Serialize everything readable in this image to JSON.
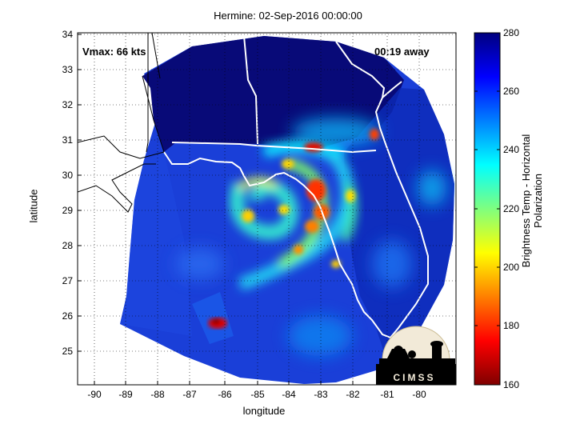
{
  "map": {
    "title": "Hermine: 02-Sep-2016 00:00:00",
    "xlabel": "longitude",
    "ylabel": "latitude",
    "vmax_label": "Vmax: 66 kts",
    "time_away_label": "00:19 away",
    "logo_text": "CIMSS",
    "lon_ticks": [
      "-90",
      "-89",
      "-88",
      "-87",
      "-86",
      "-85",
      "-84",
      "-83",
      "-82",
      "-81",
      "-80"
    ],
    "lat_ticks": [
      "34",
      "33",
      "32",
      "31",
      "30",
      "29",
      "28",
      "27",
      "26",
      "25"
    ]
  },
  "colorbar": {
    "label": "Brightness Temp - Horizontal Polarization",
    "ticks": [
      "280",
      "260",
      "240",
      "220",
      "200",
      "180",
      "160"
    ],
    "colors": [
      "#00007f",
      "#0000ff",
      "#007fff",
      "#00ffff",
      "#7fff7f",
      "#ffff00",
      "#ff7f00",
      "#ff0000",
      "#7f0000"
    ]
  }
}
